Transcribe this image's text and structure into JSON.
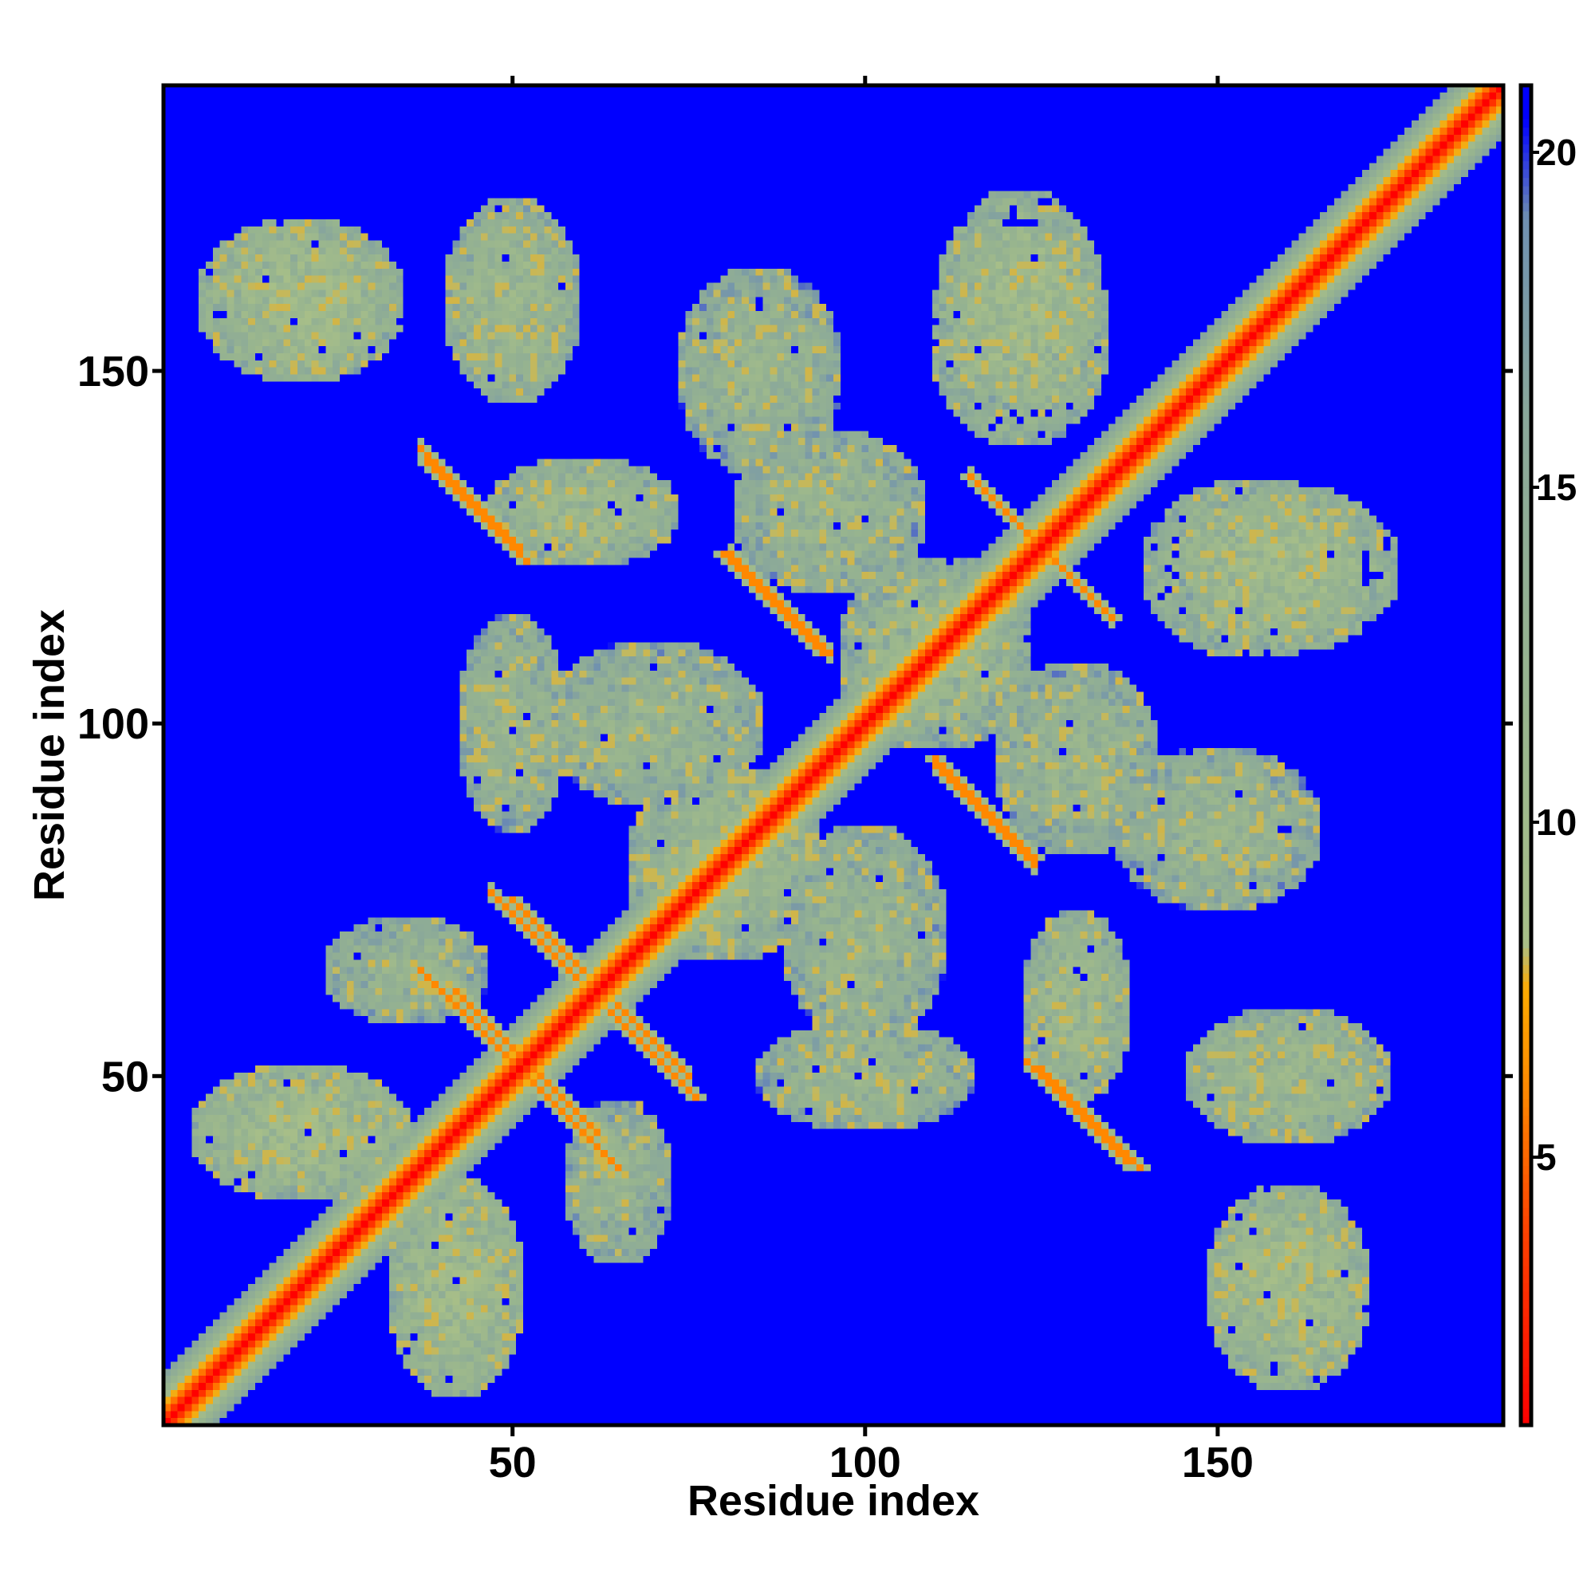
{
  "chart_data": {
    "type": "heatmap",
    "title": "",
    "xlabel": "Residue index",
    "ylabel": "Residue index",
    "n_residues": 190,
    "xlim": [
      1,
      190
    ],
    "ylim": [
      1,
      190
    ],
    "x_ticks": [
      50,
      100,
      150
    ],
    "y_ticks": [
      50,
      100,
      150
    ],
    "grid": false,
    "colorbar": {
      "min": 1,
      "max": 21,
      "ticks": [
        5,
        10,
        15,
        20
      ],
      "stops": [
        {
          "value": 1,
          "color": "#ff0000"
        },
        {
          "value": 4,
          "color": "#ff4400"
        },
        {
          "value": 6,
          "color": "#ff8800"
        },
        {
          "value": 7.5,
          "color": "#ffaa00"
        },
        {
          "value": 8.2,
          "color": "#a8bf88"
        },
        {
          "value": 12,
          "color": "#97b48f"
        },
        {
          "value": 16,
          "color": "#8aa89a"
        },
        {
          "value": 19,
          "color": "#6f90b0"
        },
        {
          "value": 20.5,
          "color": "#0000ff"
        }
      ]
    },
    "background_value": 21,
    "diagonal_band_halfwidth": 7,
    "contact_features": [
      {
        "kind": "ridge",
        "cx": 52,
        "cy": 52,
        "len": 10,
        "dir": "anti",
        "value": 6
      },
      {
        "kind": "ridge",
        "cx": 45,
        "cy": 57,
        "len": 8,
        "dir": "anti",
        "value": 6
      },
      {
        "kind": "ridge",
        "cx": 125,
        "cy": 125,
        "len": 10,
        "dir": "anti",
        "value": 6
      },
      {
        "kind": "ridge",
        "cx": 45,
        "cy": 130,
        "len": 7,
        "dir": "anti",
        "value": 6
      },
      {
        "kind": "ridge",
        "cx": 132,
        "cy": 44,
        "len": 7,
        "dir": "anti",
        "value": 6
      },
      {
        "kind": "ridge",
        "cx": 87,
        "cy": 117,
        "len": 7,
        "dir": "anti",
        "value": 6
      },
      {
        "kind": "ridge",
        "cx": 117,
        "cy": 88,
        "len": 7,
        "dir": "anti",
        "value": 6
      },
      {
        "kind": "ridge",
        "cx": 70,
        "cy": 53,
        "len": 6,
        "dir": "anti",
        "value": 6
      },
      {
        "kind": "ridge",
        "cx": 55,
        "cy": 70,
        "len": 5,
        "dir": "anti",
        "value": 6
      },
      {
        "kind": "blob",
        "cx": 20,
        "cy": 160,
        "rx": 15,
        "ry": 12,
        "value": 11
      },
      {
        "kind": "blob",
        "cx": 50,
        "cy": 160,
        "rx": 10,
        "ry": 15,
        "value": 12
      },
      {
        "kind": "blob",
        "cx": 85,
        "cy": 150,
        "rx": 12,
        "ry": 15,
        "value": 13
      },
      {
        "kind": "blob",
        "cx": 122,
        "cy": 155,
        "rx": 13,
        "ry": 16,
        "value": 11
      },
      {
        "kind": "blob",
        "cx": 160,
        "cy": 122,
        "rx": 16,
        "ry": 12,
        "value": 11
      },
      {
        "kind": "blob",
        "cx": 150,
        "cy": 85,
        "rx": 15,
        "ry": 12,
        "value": 13
      },
      {
        "kind": "blob",
        "cx": 160,
        "cy": 50,
        "rx": 15,
        "ry": 10,
        "value": 12
      },
      {
        "kind": "blob",
        "cx": 160,
        "cy": 20,
        "rx": 12,
        "ry": 15,
        "value": 11
      },
      {
        "kind": "blob",
        "cx": 20,
        "cy": 42,
        "rx": 16,
        "ry": 10,
        "value": 11
      },
      {
        "kind": "blob",
        "cx": 42,
        "cy": 20,
        "rx": 10,
        "ry": 16,
        "value": 11
      },
      {
        "kind": "blob",
        "cx": 80,
        "cy": 80,
        "rx": 14,
        "ry": 14,
        "value": 12
      },
      {
        "kind": "blob",
        "cx": 100,
        "cy": 70,
        "rx": 12,
        "ry": 16,
        "value": 13
      },
      {
        "kind": "blob",
        "cx": 70,
        "cy": 100,
        "rx": 16,
        "ry": 12,
        "value": 13
      },
      {
        "kind": "blob",
        "cx": 110,
        "cy": 110,
        "rx": 14,
        "ry": 14,
        "value": 12
      },
      {
        "kind": "blob",
        "cx": 130,
        "cy": 95,
        "rx": 12,
        "ry": 14,
        "value": 13
      },
      {
        "kind": "blob",
        "cx": 95,
        "cy": 130,
        "rx": 14,
        "ry": 12,
        "value": 13
      },
      {
        "kind": "blob",
        "cx": 60,
        "cy": 130,
        "rx": 14,
        "ry": 8,
        "value": 12
      },
      {
        "kind": "blob",
        "cx": 130,
        "cy": 60,
        "rx": 8,
        "ry": 14,
        "value": 12
      },
      {
        "kind": "blob",
        "cx": 50,
        "cy": 100,
        "rx": 8,
        "ry": 16,
        "value": 13
      },
      {
        "kind": "blob",
        "cx": 100,
        "cy": 50,
        "rx": 16,
        "ry": 8,
        "value": 13
      },
      {
        "kind": "blob",
        "cx": 35,
        "cy": 65,
        "rx": 12,
        "ry": 8,
        "value": 13
      },
      {
        "kind": "blob",
        "cx": 65,
        "cy": 35,
        "rx": 8,
        "ry": 12,
        "value": 13
      }
    ]
  }
}
